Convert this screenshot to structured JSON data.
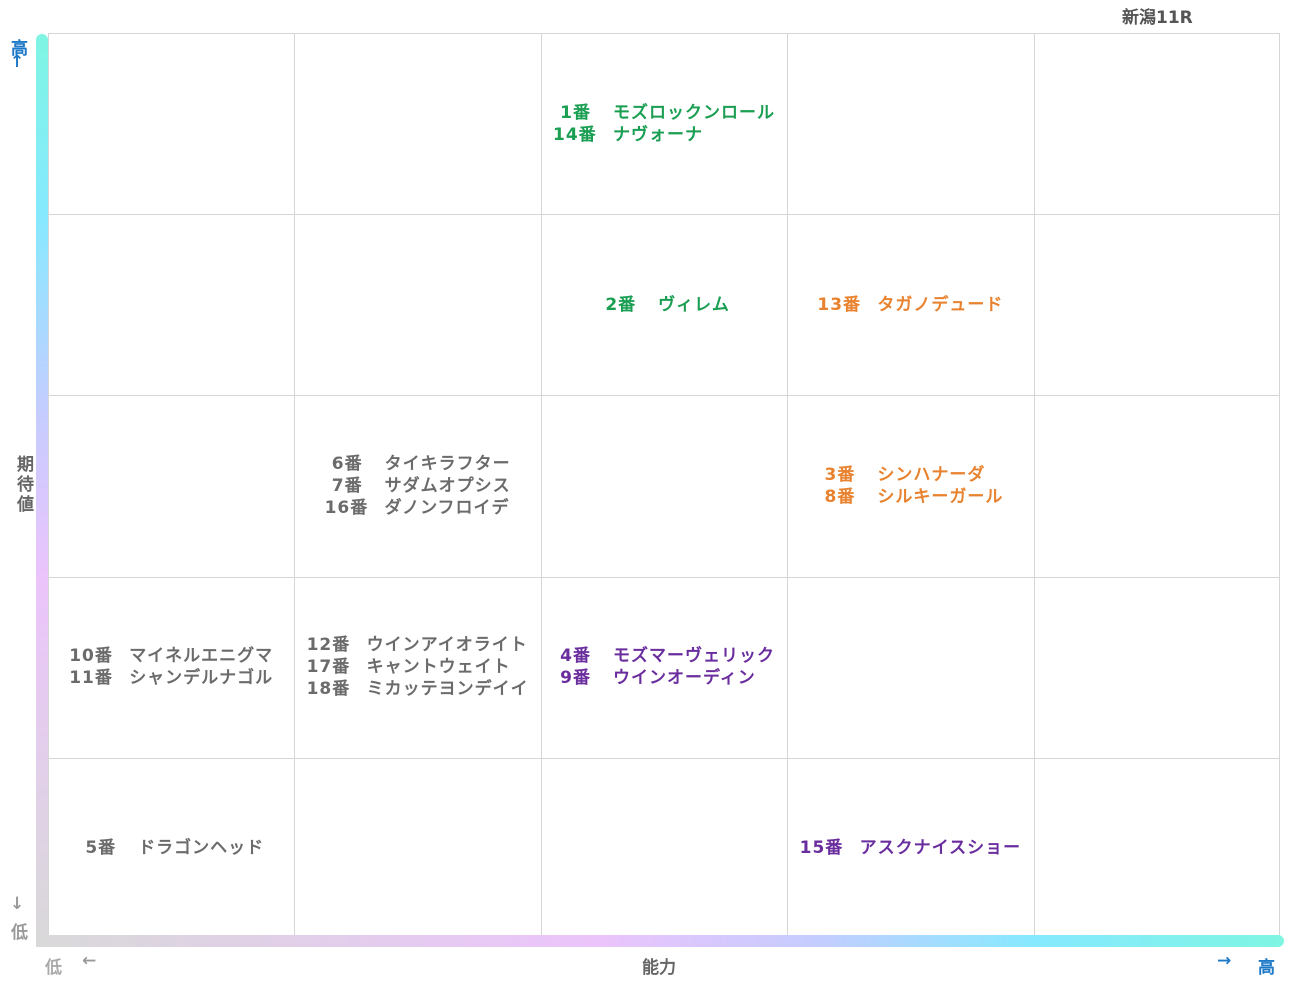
{
  "race_title": "新潟11R",
  "axes": {
    "y_label": "期待値",
    "x_label": "能力",
    "high_label": "高",
    "low_label": "低",
    "arrow_up": "↑",
    "arrow_down": "↓",
    "arrow_left": "←",
    "arrow_right": "→"
  },
  "colors": {
    "green": "#1a9e52",
    "orange": "#e8822e",
    "purple": "#6a2d9e",
    "gray": "#6b6b6b"
  },
  "chart_data": {
    "type": "table",
    "x_axis": "能力",
    "y_axis": "期待値",
    "columns": 5,
    "rows": 5,
    "suffix": "番",
    "cells": [
      {
        "col": 2,
        "row": 0,
        "color": "green",
        "entries": [
          {
            "num": "1",
            "name": "モズロックンロール"
          },
          {
            "num": "14",
            "name": "ナヴォーナ"
          }
        ]
      },
      {
        "col": 2,
        "row": 1,
        "color": "green",
        "entries": [
          {
            "num": "2",
            "name": "ヴィレム"
          }
        ]
      },
      {
        "col": 3,
        "row": 1,
        "color": "orange",
        "entries": [
          {
            "num": "13",
            "name": "タガノデュード"
          }
        ]
      },
      {
        "col": 1,
        "row": 2,
        "color": "gray",
        "entries": [
          {
            "num": "6",
            "name": "タイキラフター"
          },
          {
            "num": "7",
            "name": "サダムオプシス"
          },
          {
            "num": "16",
            "name": "ダノンフロイデ"
          }
        ]
      },
      {
        "col": 3,
        "row": 2,
        "color": "orange",
        "entries": [
          {
            "num": "3",
            "name": "シンハナーダ"
          },
          {
            "num": "8",
            "name": "シルキーガール"
          }
        ]
      },
      {
        "col": 0,
        "row": 3,
        "color": "gray",
        "entries": [
          {
            "num": "10",
            "name": "マイネルエニグマ"
          },
          {
            "num": "11",
            "name": "シャンデルナゴル"
          }
        ]
      },
      {
        "col": 1,
        "row": 3,
        "color": "gray",
        "entries": [
          {
            "num": "12",
            "name": "ウインアイオライト"
          },
          {
            "num": "17",
            "name": "キャントウェイト"
          },
          {
            "num": "18",
            "name": "ミカッテヨンデイイ"
          }
        ]
      },
      {
        "col": 2,
        "row": 3,
        "color": "purple",
        "entries": [
          {
            "num": "4",
            "name": "モズマーヴェリック"
          },
          {
            "num": "9",
            "name": "ウインオーディン"
          }
        ]
      },
      {
        "col": 0,
        "row": 4,
        "color": "gray",
        "entries": [
          {
            "num": "5",
            "name": "ドラゴンヘッド"
          }
        ]
      },
      {
        "col": 3,
        "row": 4,
        "color": "purple",
        "entries": [
          {
            "num": "15",
            "name": "アスクナイスショー"
          }
        ]
      }
    ]
  }
}
